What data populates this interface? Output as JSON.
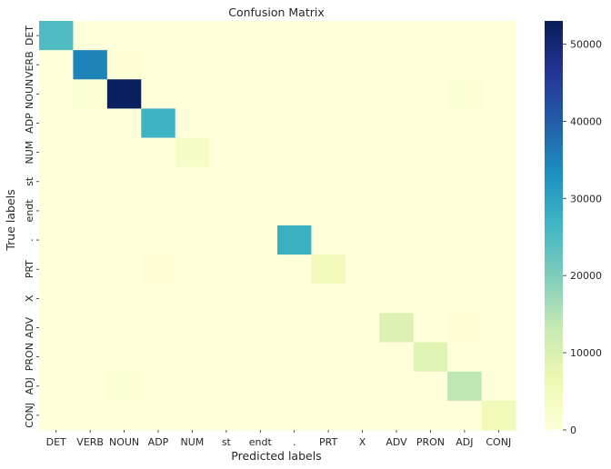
{
  "chart_data": {
    "type": "heatmap",
    "title": "Confusion Matrix",
    "xlabel": "Predicted labels",
    "ylabel": "True labels",
    "labels": [
      "DET",
      "VERB",
      "NOUN",
      "ADP",
      "NUM",
      "st",
      "endt",
      ".",
      "PRT",
      "X",
      "ADV",
      "PRON",
      "ADJ",
      "CONJ"
    ],
    "matrix": [
      [
        25000,
        0,
        0,
        0,
        0,
        0,
        0,
        0,
        0,
        0,
        0,
        0,
        0,
        0
      ],
      [
        0,
        35000,
        500,
        0,
        0,
        0,
        0,
        0,
        0,
        0,
        0,
        0,
        0,
        0
      ],
      [
        0,
        1000,
        52500,
        0,
        0,
        0,
        0,
        0,
        0,
        0,
        0,
        0,
        1000,
        0
      ],
      [
        0,
        0,
        0,
        27000,
        0,
        0,
        0,
        0,
        0,
        0,
        0,
        0,
        0,
        0
      ],
      [
        0,
        0,
        0,
        0,
        3000,
        0,
        0,
        0,
        0,
        0,
        0,
        0,
        0,
        0
      ],
      [
        0,
        0,
        0,
        0,
        0,
        0,
        0,
        0,
        0,
        0,
        0,
        0,
        0,
        0
      ],
      [
        0,
        0,
        0,
        0,
        0,
        0,
        0,
        0,
        0,
        0,
        0,
        0,
        0,
        0
      ],
      [
        0,
        0,
        0,
        0,
        0,
        0,
        0,
        27500,
        0,
        0,
        0,
        0,
        0,
        0
      ],
      [
        0,
        0,
        0,
        500,
        0,
        0,
        0,
        0,
        5000,
        0,
        0,
        0,
        0,
        0
      ],
      [
        0,
        0,
        0,
        0,
        0,
        0,
        0,
        0,
        0,
        0,
        0,
        0,
        0,
        0
      ],
      [
        0,
        0,
        0,
        0,
        0,
        0,
        0,
        0,
        0,
        0,
        9500,
        0,
        500,
        0
      ],
      [
        0,
        0,
        0,
        0,
        0,
        0,
        0,
        0,
        0,
        0,
        0,
        9000,
        0,
        0
      ],
      [
        0,
        0,
        1000,
        0,
        0,
        0,
        0,
        0,
        0,
        0,
        0,
        0,
        14000,
        0
      ],
      [
        0,
        0,
        0,
        0,
        0,
        0,
        0,
        0,
        0,
        0,
        0,
        0,
        0,
        5500
      ]
    ],
    "vmin": 0,
    "vmax": 53000,
    "colorbar_ticks": [
      0,
      10000,
      20000,
      30000,
      40000,
      50000
    ],
    "colormap": "YlGnBu"
  }
}
